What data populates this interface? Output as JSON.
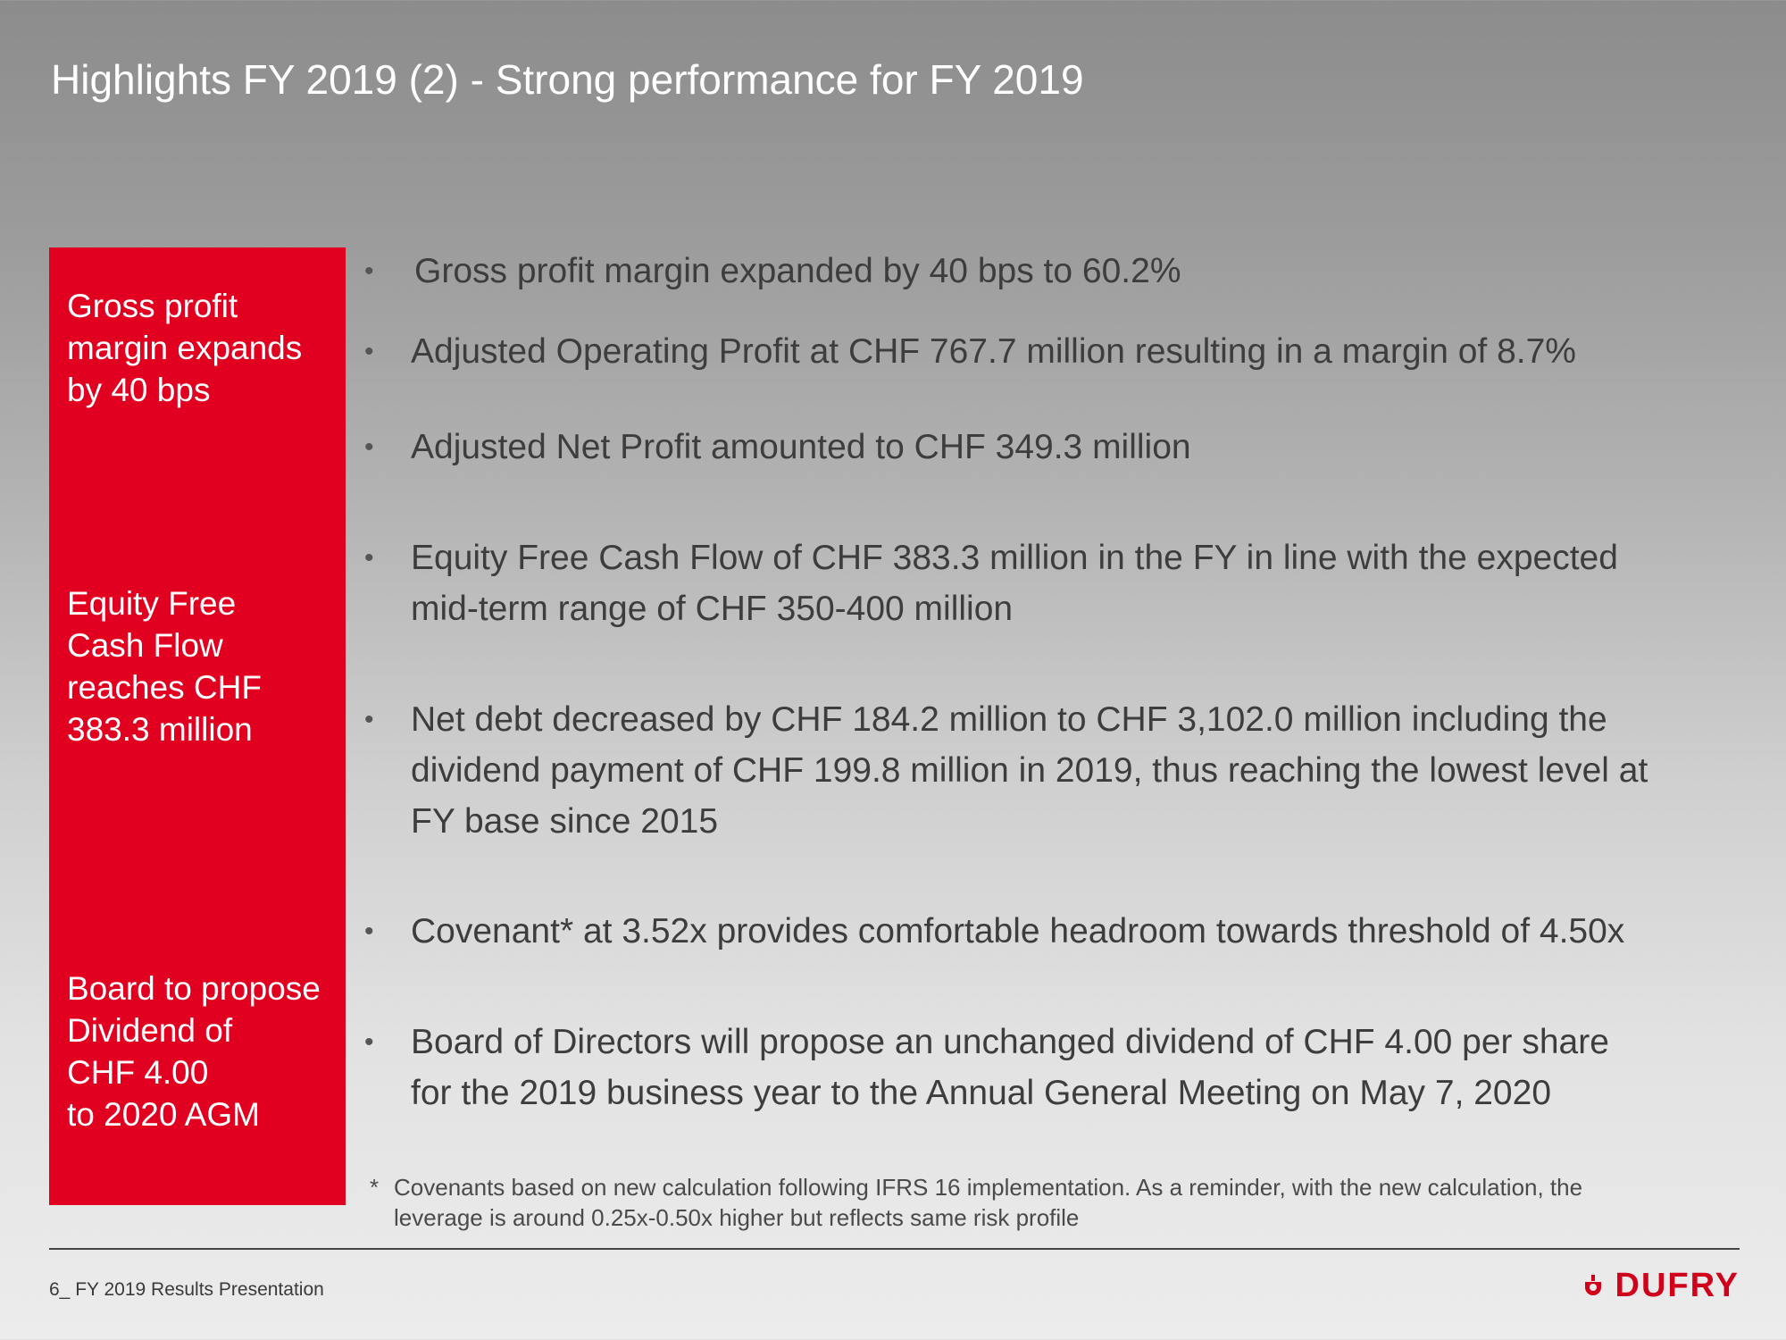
{
  "title": "Highlights FY 2019 (2) - Strong performance for FY 2019",
  "sidebar": {
    "items": [
      {
        "lines": [
          "Gross profit",
          "margin expands",
          "by 40 bps"
        ]
      },
      {
        "lines": [
          "Equity Free",
          "Cash Flow",
          "reaches CHF",
          "383.3 million"
        ]
      },
      {
        "lines": [
          "Board to propose",
          "Dividend of",
          "CHF 4.00",
          "to 2020 AGM"
        ]
      }
    ]
  },
  "bullets": [
    {
      "lines": [
        "Gross profit margin expanded by 40 bps to 60.2%"
      ]
    },
    {
      "lines": [
        "Adjusted Operating Profit at CHF 767.7 million resulting in a margin of 8.7%"
      ]
    },
    {
      "lines": [
        "Adjusted Net Profit amounted to CHF 349.3 million"
      ]
    },
    {
      "lines": [
        "Equity Free Cash Flow of CHF 383.3 million in the FY in line with the expected",
        "mid-term range of CHF 350-400 million"
      ]
    },
    {
      "lines": [
        "Net debt decreased by CHF 184.2 million to CHF 3,102.0 million including the",
        "dividend payment of CHF 199.8 million in 2019, thus reaching the lowest level at",
        "FY base since 2015"
      ]
    },
    {
      "lines": [
        "Covenant* at 3.52x provides comfortable headroom towards threshold of 4.50x"
      ]
    },
    {
      "lines": [
        "Board of Directors will propose an unchanged dividend of CHF 4.00 per share",
        "for the 2019 business year to the Annual General Meeting on May 7, 2020"
      ]
    }
  ],
  "footnote": {
    "marker": "*",
    "lines": [
      "Covenants based on new calculation following IFRS 16 implementation. As a reminder, with the new calculation, the",
      "leverage is around 0.25x-0.50x higher but reflects same risk profile"
    ]
  },
  "footer": {
    "page_label": "6_ FY 2019 Results Presentation",
    "logo_text": "DUFRY",
    "logo_icon": "dufry-logo-icon",
    "brand_color": "#d0021b",
    "accent_color": "#e1001f"
  }
}
